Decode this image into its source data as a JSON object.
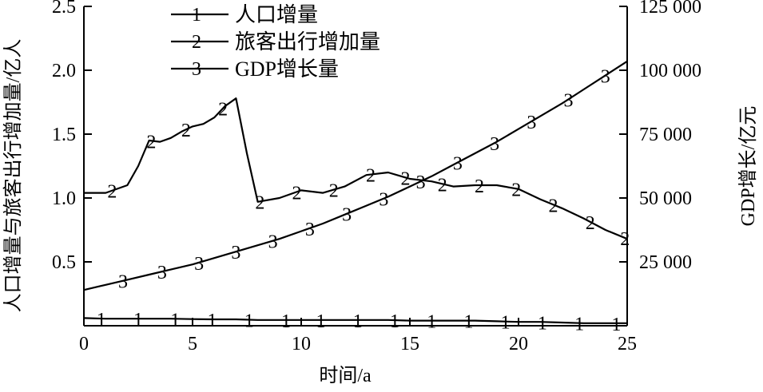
{
  "chart_data": {
    "type": "line",
    "xlabel": "时间/a",
    "ylabel_left": "人口增量与旅客出行增加量/亿人",
    "ylabel_right": "GDP增长/亿元",
    "xlim": [
      0,
      25
    ],
    "ylim_left": [
      0,
      2.5
    ],
    "ylim_right": [
      0,
      125000
    ],
    "x_ticks": [
      "0",
      "5",
      "10",
      "15",
      "20",
      "25"
    ],
    "y_left_ticks": [
      "0.5",
      "1.0",
      "1.5",
      "2.0",
      "2.5"
    ],
    "y_right_ticks": [
      "25 000",
      "50 000",
      "75 000",
      "100 000",
      "125 000"
    ],
    "legend_position": "top-center",
    "grid": false,
    "series": [
      {
        "name": "人口增量",
        "marker": "1",
        "axis": "left",
        "x": [
          0,
          1,
          2,
          3,
          4,
          5,
          6,
          7,
          8,
          9,
          10,
          11,
          12,
          13,
          14,
          15,
          16,
          17,
          18,
          19,
          20,
          21,
          22,
          23,
          24,
          25
        ],
        "y": [
          0.06,
          0.055,
          0.055,
          0.055,
          0.055,
          0.052,
          0.05,
          0.05,
          0.045,
          0.045,
          0.045,
          0.045,
          0.045,
          0.045,
          0.045,
          0.04,
          0.04,
          0.04,
          0.04,
          0.035,
          0.03,
          0.03,
          0.025,
          0.02,
          0.02,
          0.02
        ],
        "marker_x": [
          0.8,
          2.5,
          4.2,
          5.9,
          7.6,
          9.3,
          10.9,
          12.6,
          14.3,
          16,
          17.7,
          19.4,
          21.1,
          22.8,
          24.5
        ]
      },
      {
        "name": "旅客出行增加量",
        "marker": "2",
        "axis": "left",
        "x": [
          0,
          1,
          2,
          2.5,
          3,
          3.5,
          4,
          4.5,
          5,
          5.5,
          6,
          6.5,
          7,
          7.5,
          8,
          9,
          10,
          11,
          12,
          13,
          14,
          15,
          16,
          17,
          18,
          19,
          20,
          21,
          22,
          23,
          24,
          25
        ],
        "y": [
          1.04,
          1.04,
          1.1,
          1.25,
          1.45,
          1.44,
          1.47,
          1.52,
          1.56,
          1.58,
          1.63,
          1.72,
          1.78,
          1.35,
          0.97,
          1.0,
          1.06,
          1.04,
          1.09,
          1.18,
          1.2,
          1.15,
          1.13,
          1.09,
          1.1,
          1.1,
          1.07,
          0.99,
          0.92,
          0.84,
          0.75,
          0.68
        ],
        "marker_x": [
          1.3,
          3.1,
          4.7,
          6.4,
          8.1,
          9.8,
          11.5,
          13.2,
          14.8,
          16.5,
          18.2,
          19.9,
          21.6,
          23.3,
          24.9
        ]
      },
      {
        "name": "GDP增长量",
        "marker": "3",
        "axis": "right",
        "x": [
          0,
          1,
          2,
          3,
          4,
          5,
          6,
          7,
          8,
          9,
          10,
          11,
          12,
          13,
          14,
          15,
          16,
          17,
          18,
          19,
          20,
          21,
          22,
          23,
          24,
          25
        ],
        "y": [
          14000,
          16000,
          18000,
          20000,
          22000,
          24000,
          26500,
          29000,
          31500,
          34000,
          37000,
          40000,
          43500,
          47000,
          50500,
          54500,
          58500,
          63000,
          67500,
          72000,
          77000,
          82000,
          87000,
          92500,
          98000,
          103500
        ],
        "marker_x": [
          1.8,
          3.6,
          5.3,
          7,
          8.7,
          10.4,
          12.1,
          13.8,
          15.5,
          17.2,
          18.9,
          20.6,
          22.3,
          24
        ]
      }
    ]
  }
}
